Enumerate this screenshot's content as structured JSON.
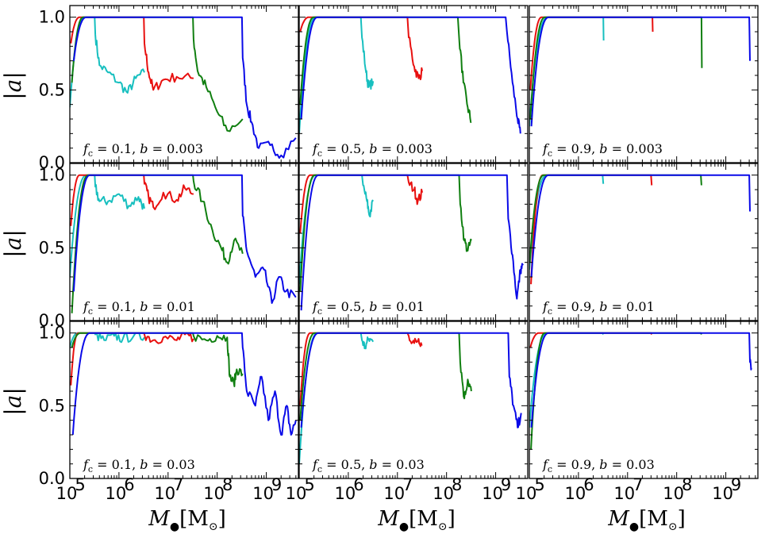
{
  "chart_data": {
    "type": "line",
    "grid": false,
    "x_scale": "log",
    "xlim": [
      100000.0,
      4500000000.0
    ],
    "ylim": [
      0.0,
      1.08
    ],
    "x_tick_labels": [
      "10",
      "10",
      "10",
      "10",
      "10"
    ],
    "x_tick_exponents": [
      "5",
      "6",
      "7",
      "8",
      "9"
    ],
    "y_tick_labels": [
      "0.0",
      "0.5",
      "1.0"
    ],
    "ylabel": "|a|",
    "xlabel": {
      "base": "M",
      "sub": "●",
      "unit": "[M",
      "unit_sub": "⊙",
      "close": "]"
    },
    "series_colors": {
      "cyan": "#17bfbf",
      "red": "#e8100f",
      "green": "#107f10",
      "blue": "#0a0ae8"
    },
    "panels": [
      {
        "row": 0,
        "col": 0,
        "label": "f_c = 0.1,  b = 0.003",
        "fc": "0.1",
        "b": "0.003"
      },
      {
        "row": 0,
        "col": 1,
        "label": "f_c = 0.5,  b = 0.003",
        "fc": "0.5",
        "b": "0.003"
      },
      {
        "row": 0,
        "col": 2,
        "label": "f_c = 0.9,  b = 0.003",
        "fc": "0.9",
        "b": "0.003"
      },
      {
        "row": 1,
        "col": 0,
        "label": "f_c = 0.1,  b = 0.01",
        "fc": "0.1",
        "b": "0.01"
      },
      {
        "row": 1,
        "col": 1,
        "label": "f_c = 0.5,  b = 0.01",
        "fc": "0.5",
        "b": "0.01"
      },
      {
        "row": 1,
        "col": 2,
        "label": "f_c = 0.9,  b = 0.01",
        "fc": "0.9",
        "b": "0.01"
      },
      {
        "row": 2,
        "col": 0,
        "label": "f_c = 0.1,  b = 0.03",
        "fc": "0.1",
        "b": "0.03"
      },
      {
        "row": 2,
        "col": 1,
        "label": "f_c = 0.5,  b = 0.03",
        "fc": "0.5",
        "b": "0.03"
      },
      {
        "row": 2,
        "col": 2,
        "label": "f_c = 0.9,  b = 0.03",
        "fc": "0.9",
        "b": "0.03"
      }
    ],
    "curves": [
      {
        "panel": 0,
        "name": "cyan",
        "start": [
          100000.0,
          0.38
        ],
        "rise_end": 200000.0,
        "drop_at": 320000.0,
        "tail": [
          [
            330000.0,
            0.88
          ],
          [
            400000.0,
            0.67
          ],
          [
            600000.0,
            0.62
          ],
          [
            1000000.0,
            0.55
          ],
          [
            1500000.0,
            0.48
          ],
          [
            2200000.0,
            0.58
          ],
          [
            3300000.0,
            0.62
          ]
        ]
      },
      {
        "panel": 0,
        "name": "red",
        "start": [
          105000.0,
          0.82
        ],
        "rise_end": 160000.0,
        "drop_at": 3200000.0,
        "tail": [
          [
            3300000.0,
            0.82
          ],
          [
            4000000.0,
            0.62
          ],
          [
            5000000.0,
            0.5
          ],
          [
            8000000.0,
            0.57
          ],
          [
            15000000.0,
            0.59
          ],
          [
            33000000.0,
            0.58
          ]
        ]
      },
      {
        "panel": 0,
        "name": "green",
        "start": [
          110000.0,
          0.55
        ],
        "rise_end": 190000.0,
        "drop_at": 32000000.0,
        "tail": [
          [
            33000000.0,
            0.85
          ],
          [
            40000000.0,
            0.63
          ],
          [
            60000000.0,
            0.52
          ],
          [
            100000000.0,
            0.35
          ],
          [
            160000000.0,
            0.22
          ],
          [
            330000000.0,
            0.3
          ]
        ]
      },
      {
        "panel": 0,
        "name": "blue",
        "start": [
          120000.0,
          0.7
        ],
        "rise_end": 220000.0,
        "drop_at": 320000000.0,
        "tail": [
          [
            330000000.0,
            0.72
          ],
          [
            400000000.0,
            0.4
          ],
          [
            500000000.0,
            0.28
          ],
          [
            700000000.0,
            0.1
          ],
          [
            1200000000.0,
            0.12
          ],
          [
            2000000000.0,
            0.05
          ],
          [
            4000000000.0,
            0.17
          ]
        ]
      },
      {
        "panel": 1,
        "name": "cyan",
        "start": [
          100000.0,
          0.2
        ],
        "rise_end": 220000.0,
        "drop_at": 1800000.0,
        "tail": [
          [
            1900000.0,
            0.86
          ],
          [
            2300000.0,
            0.62
          ],
          [
            2600000.0,
            0.52
          ],
          [
            3200000.0,
            0.56
          ]
        ]
      },
      {
        "panel": 1,
        "name": "red",
        "start": [
          105000.0,
          0.9
        ],
        "rise_end": 160000.0,
        "drop_at": 16000000.0,
        "tail": [
          [
            17000000.0,
            0.86
          ],
          [
            22000000.0,
            0.66
          ],
          [
            27000000.0,
            0.58
          ],
          [
            32000000.0,
            0.63
          ]
        ]
      },
      {
        "panel": 1,
        "name": "green",
        "start": [
          105000.0,
          0.4
        ],
        "rise_end": 200000.0,
        "drop_at": 170000000.0,
        "tail": [
          [
            180000000.0,
            0.86
          ],
          [
            220000000.0,
            0.55
          ],
          [
            270000000.0,
            0.38
          ],
          [
            320000000.0,
            0.28
          ]
        ]
      },
      {
        "panel": 1,
        "name": "blue",
        "start": [
          110000.0,
          0.3
        ],
        "rise_end": 240000.0,
        "drop_at": 1600000000.0,
        "tail": [
          [
            1700000000.0,
            0.9
          ],
          [
            2200000000.0,
            0.55
          ],
          [
            2800000000.0,
            0.3
          ],
          [
            3200000000.0,
            0.2
          ]
        ]
      },
      {
        "panel": 2,
        "name": "cyan",
        "start": [
          100000.0,
          0.25
        ],
        "rise_end": 240000.0,
        "drop_at": 3200000.0,
        "tail": [
          [
            3250000.0,
            0.84
          ]
        ]
      },
      {
        "panel": 2,
        "name": "red",
        "start": [
          105000.0,
          0.5
        ],
        "rise_end": 180000.0,
        "drop_at": 32000000.0,
        "tail": [
          [
            32500000.0,
            0.9
          ]
        ]
      },
      {
        "panel": 2,
        "name": "green",
        "start": [
          105000.0,
          0.3
        ],
        "rise_end": 210000.0,
        "drop_at": 320000000.0,
        "tail": [
          [
            325000000.0,
            0.65
          ]
        ]
      },
      {
        "panel": 2,
        "name": "blue",
        "start": [
          110000.0,
          0.25
        ],
        "rise_end": 250000.0,
        "drop_at": 3000000000.0,
        "tail": [
          [
            3100000000.0,
            0.7
          ]
        ]
      },
      {
        "panel": 3,
        "name": "cyan",
        "start": [
          100000.0,
          0.3
        ],
        "rise_end": 220000.0,
        "drop_at": 320000.0,
        "tail": [
          [
            330000.0,
            0.92
          ],
          [
            400000.0,
            0.82
          ],
          [
            600000.0,
            0.82
          ],
          [
            1000000.0,
            0.87
          ],
          [
            1600000.0,
            0.79
          ],
          [
            2500000.0,
            0.85
          ],
          [
            3300000.0,
            0.77
          ]
        ]
      },
      {
        "panel": 3,
        "name": "red",
        "start": [
          105000.0,
          0.65
        ],
        "rise_end": 160000.0,
        "drop_at": 3200000.0,
        "tail": [
          [
            3300000.0,
            0.94
          ],
          [
            4000000.0,
            0.85
          ],
          [
            5000000.0,
            0.78
          ],
          [
            8000000.0,
            0.88
          ],
          [
            15000000.0,
            0.83
          ],
          [
            22000000.0,
            0.91
          ],
          [
            33000000.0,
            0.87
          ]
        ]
      },
      {
        "panel": 3,
        "name": "green",
        "start": [
          110000.0,
          0.05
        ],
        "rise_end": 240000.0,
        "drop_at": 32000000.0,
        "tail": [
          [
            33000000.0,
            0.96
          ],
          [
            50000000.0,
            0.82
          ],
          [
            80000000.0,
            0.62
          ],
          [
            120000000.0,
            0.5
          ],
          [
            160000000.0,
            0.4
          ],
          [
            220000000.0,
            0.55
          ],
          [
            330000000.0,
            0.46
          ]
        ]
      },
      {
        "panel": 3,
        "name": "blue",
        "start": [
          120000.0,
          0.2
        ],
        "rise_end": 260000.0,
        "drop_at": 320000000.0,
        "tail": [
          [
            330000000.0,
            0.72
          ],
          [
            400000000.0,
            0.48
          ],
          [
            600000000.0,
            0.3
          ],
          [
            900000000.0,
            0.35
          ],
          [
            1300000000.0,
            0.12
          ],
          [
            1800000000.0,
            0.3
          ],
          [
            2500000000.0,
            0.2
          ],
          [
            4000000000.0,
            0.16
          ]
        ]
      },
      {
        "panel": 4,
        "name": "cyan",
        "start": [
          100000.0,
          0.25
        ],
        "rise_end": 220000.0,
        "drop_at": 1900000.0,
        "tail": [
          [
            2000000.0,
            0.93
          ],
          [
            2400000.0,
            0.82
          ],
          [
            2700000.0,
            0.72
          ],
          [
            3200000.0,
            0.82
          ]
        ]
      },
      {
        "panel": 4,
        "name": "red",
        "start": [
          105000.0,
          0.6
        ],
        "rise_end": 170000.0,
        "drop_at": 16000000.0,
        "tail": [
          [
            17000000.0,
            0.95
          ],
          [
            22000000.0,
            0.9
          ],
          [
            26000000.0,
            0.82
          ],
          [
            32000000.0,
            0.88
          ]
        ]
      },
      {
        "panel": 4,
        "name": "green",
        "start": [
          105000.0,
          0.2
        ],
        "rise_end": 210000.0,
        "drop_at": 180000000.0,
        "tail": [
          [
            190000000.0,
            0.8
          ],
          [
            230000000.0,
            0.55
          ],
          [
            270000000.0,
            0.48
          ],
          [
            320000000.0,
            0.55
          ]
        ]
      },
      {
        "panel": 4,
        "name": "blue",
        "start": [
          110000.0,
          0.07
        ],
        "rise_end": 250000.0,
        "drop_at": 1700000000.0,
        "tail": [
          [
            1800000000.0,
            0.7
          ],
          [
            2200000000.0,
            0.45
          ],
          [
            2700000000.0,
            0.15
          ],
          [
            3200000000.0,
            0.35
          ],
          [
            3600000000.0,
            0.38
          ]
        ]
      },
      {
        "panel": 5,
        "name": "cyan",
        "start": [
          100000.0,
          0.35
        ],
        "rise_end": 230000.0,
        "drop_at": 3100000.0,
        "tail": [
          [
            3200000.0,
            0.94
          ]
        ]
      },
      {
        "panel": 5,
        "name": "red",
        "start": [
          108000.0,
          0.25
        ],
        "rise_end": 190000.0,
        "drop_at": 30000000.0,
        "tail": [
          [
            31000000.0,
            0.93
          ]
        ]
      },
      {
        "panel": 5,
        "name": "green",
        "start": [
          102000.0,
          0.4
        ],
        "rise_end": 200000.0,
        "drop_at": 310000000.0,
        "tail": [
          [
            320000000.0,
            0.93
          ]
        ]
      },
      {
        "panel": 5,
        "name": "blue",
        "start": [
          110000.0,
          0.3
        ],
        "rise_end": 250000.0,
        "drop_at": 3000000000.0,
        "tail": [
          [
            3100000000.0,
            0.75
          ]
        ]
      },
      {
        "panel": 6,
        "name": "cyan",
        "start": [
          100000.0,
          0.9
        ],
        "rise_end": 150000.0,
        "drop_at": 320000.0,
        "tail": [
          [
            330000.0,
            0.99
          ],
          [
            500000.0,
            0.95
          ],
          [
            800000.0,
            0.98
          ],
          [
            1200000.0,
            0.96
          ],
          [
            2000000.0,
            0.98
          ],
          [
            3300000.0,
            0.97
          ]
        ]
      },
      {
        "panel": 6,
        "name": "red",
        "start": [
          105000.0,
          0.64
        ],
        "rise_end": 150000.0,
        "drop_at": 3200000.0,
        "tail": [
          [
            3300000.0,
            0.99
          ],
          [
            5000000.0,
            0.95
          ],
          [
            8000000.0,
            0.97
          ],
          [
            15000000.0,
            0.95
          ],
          [
            22000000.0,
            0.99
          ],
          [
            33000000.0,
            0.96
          ]
        ]
      },
      {
        "panel": 6,
        "name": "green",
        "start": [
          110000.0,
          0.9
        ],
        "rise_end": 170000.0,
        "drop_at": 32000000.0,
        "tail": [
          [
            33000000.0,
            0.98
          ],
          [
            60000000.0,
            0.95
          ],
          [
            100000000.0,
            0.98
          ],
          [
            160000000.0,
            0.97
          ],
          [
            180000000.0,
            0.7
          ],
          [
            220000000.0,
            0.65
          ],
          [
            250000000.0,
            0.75
          ],
          [
            330000000.0,
            0.72
          ]
        ]
      },
      {
        "panel": 6,
        "name": "blue",
        "start": [
          115000.0,
          0.3
        ],
        "rise_end": 260000.0,
        "drop_at": 320000000.0,
        "tail": [
          [
            330000000.0,
            0.9
          ],
          [
            400000000.0,
            0.6
          ],
          [
            600000000.0,
            0.5
          ],
          [
            800000000.0,
            0.7
          ],
          [
            1100000000.0,
            0.4
          ],
          [
            1500000000.0,
            0.6
          ],
          [
            2000000000.0,
            0.3
          ],
          [
            2600000000.0,
            0.5
          ],
          [
            3200000000.0,
            0.3
          ],
          [
            4000000000.0,
            0.4
          ]
        ]
      },
      {
        "panel": 7,
        "name": "cyan",
        "start": [
          100000.0,
          0.1
        ],
        "rise_end": 240000.0,
        "drop_at": 1800000.0,
        "tail": [
          [
            1900000.0,
            0.95
          ],
          [
            2200000.0,
            0.9
          ],
          [
            2600000.0,
            0.96
          ],
          [
            3200000.0,
            0.94
          ]
        ]
      },
      {
        "panel": 7,
        "name": "red",
        "start": [
          105000.0,
          0.5
        ],
        "rise_end": 170000.0,
        "drop_at": 16000000.0,
        "tail": [
          [
            17000000.0,
            0.98
          ],
          [
            22000000.0,
            0.93
          ],
          [
            27000000.0,
            0.96
          ],
          [
            32000000.0,
            0.92
          ]
        ]
      },
      {
        "panel": 7,
        "name": "green",
        "start": [
          105000.0,
          0.4
        ],
        "rise_end": 210000.0,
        "drop_at": 180000000.0,
        "tail": [
          [
            190000000.0,
            0.8
          ],
          [
            230000000.0,
            0.55
          ],
          [
            270000000.0,
            0.68
          ],
          [
            320000000.0,
            0.6
          ]
        ]
      },
      {
        "panel": 7,
        "name": "blue",
        "start": [
          110000.0,
          0.35
        ],
        "rise_end": 250000.0,
        "drop_at": 1800000000.0,
        "tail": [
          [
            1900000000.0,
            0.7
          ],
          [
            2300000000.0,
            0.5
          ],
          [
            2800000000.0,
            0.35
          ],
          [
            3300000000.0,
            0.45
          ]
        ]
      },
      {
        "panel": 8,
        "name": "cyan",
        "start": [
          100000.0,
          0.35
        ],
        "rise_end": 230000.0,
        "drop_at": 3100000.0,
        "tail": [
          [
            3200000.0,
            0.99
          ]
        ]
      },
      {
        "panel": 8,
        "name": "red",
        "start": [
          105000.0,
          0.9
        ],
        "rise_end": 160000.0,
        "drop_at": 30000000.0,
        "tail": [
          [
            31000000.0,
            0.99
          ]
        ]
      },
      {
        "panel": 8,
        "name": "green",
        "start": [
          108000.0,
          0.2
        ],
        "rise_end": 210000.0,
        "drop_at": 310000000.0,
        "tail": [
          [
            320000000.0,
            0.99
          ]
        ]
      },
      {
        "panel": 8,
        "name": "blue",
        "start": [
          110000.0,
          0.35
        ],
        "rise_end": 250000.0,
        "drop_at": 3000000000.0,
        "tail": [
          [
            3100000000.0,
            0.8
          ],
          [
            3300000000.0,
            0.76
          ]
        ]
      }
    ]
  }
}
